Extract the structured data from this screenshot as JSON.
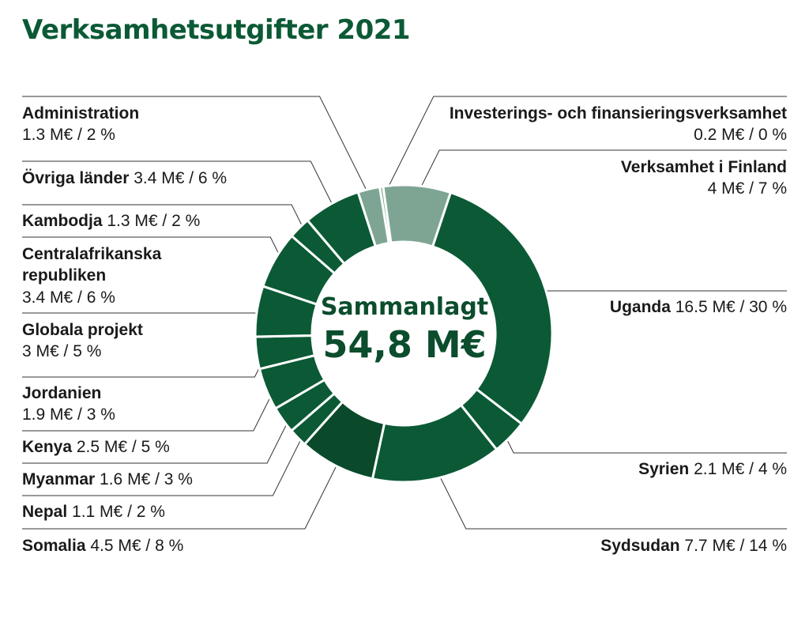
{
  "chart_data": {
    "type": "pie",
    "title": "Verksamhetsutgifter 2021",
    "center_label": "Sammanlagt",
    "center_value": "54,8 M€",
    "colors": {
      "dark": "#0b5a35",
      "darker": "#0a4a2a",
      "light": "#7ea593",
      "line": "#333333"
    },
    "slices": [
      {
        "name": "Verksamhet i Finland",
        "value": 4.0,
        "value_text": "4 M€ / 7 %",
        "color": "#7ea593"
      },
      {
        "name": "Uganda",
        "value": 16.5,
        "value_text": "16.5 M€ / 30 %",
        "color": "#0b5a35"
      },
      {
        "name": "Syrien",
        "value": 2.1,
        "value_text": "2.1 M€ / 4 %",
        "color": "#0b5a35"
      },
      {
        "name": "Sydsudan",
        "value": 7.7,
        "value_text": "7.7 M€ / 14 %",
        "color": "#0b5a35"
      },
      {
        "name": "Somalia",
        "value": 4.5,
        "value_text": "4.5 M€ / 8 %",
        "color": "#0a4a2a"
      },
      {
        "name": "Nepal",
        "value": 1.1,
        "value_text": "1.1 M€ / 2 %",
        "color": "#0b5a35"
      },
      {
        "name": "Myanmar",
        "value": 1.6,
        "value_text": "1.6 M€ / 3 %",
        "color": "#0b5a35"
      },
      {
        "name": "Kenya",
        "value": 2.5,
        "value_text": "2.5 M€ / 5 %",
        "color": "#0b5a35"
      },
      {
        "name": "Jordanien",
        "value": 1.9,
        "value_text": "1.9 M€ / 3 %",
        "color": "#0b5a35"
      },
      {
        "name": "Globala projekt",
        "value": 3.0,
        "value_text": "3 M€ / 5 %",
        "color": "#0b5a35"
      },
      {
        "name": "Centralafrikanska republiken",
        "value": 3.4,
        "value_text": "3.4 M€ / 6 %",
        "color": "#0b5a35"
      },
      {
        "name": "Kambodja",
        "value": 1.3,
        "value_text": "1.3 M€ / 2 %",
        "color": "#0b5a35"
      },
      {
        "name": "Övriga länder",
        "value": 3.4,
        "value_text": "3.4 M€ / 6 %",
        "color": "#0b5a35"
      },
      {
        "name": "Administration",
        "value": 1.3,
        "value_text": "1.3 M€ / 2 %",
        "color": "#7ea593"
      },
      {
        "name": "Investerings- och finansieringsverksamhet",
        "value": 0.2,
        "value_text": "0.2 M€ / 0 %",
        "color": "#7ea593"
      }
    ]
  }
}
